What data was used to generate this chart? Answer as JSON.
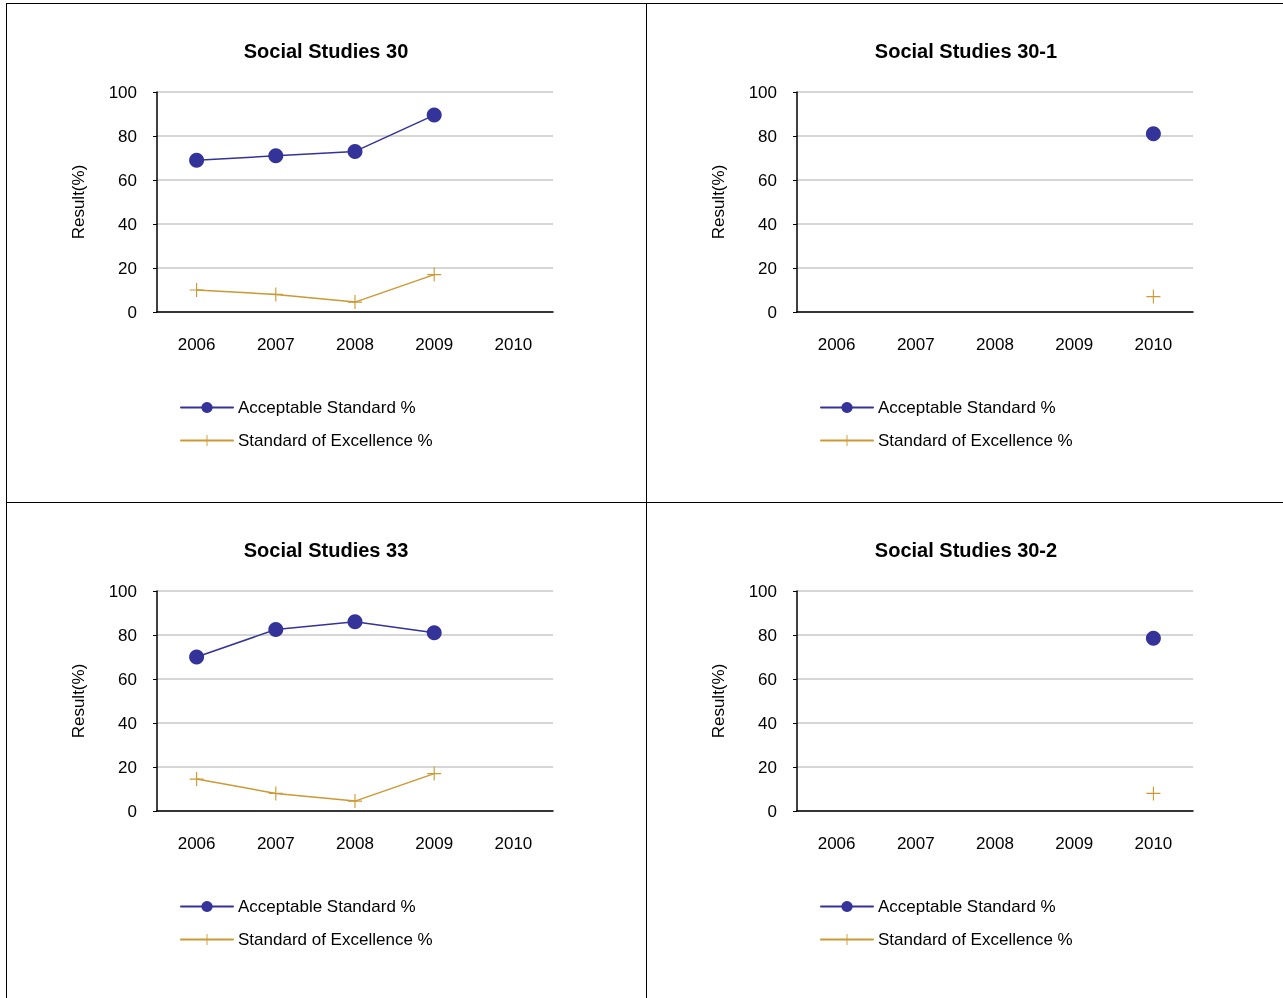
{
  "chart_data": [
    {
      "type": "line",
      "title": "Social Studies 30",
      "ylabel": "Result(%)",
      "categories": [
        "2006",
        "2007",
        "2008",
        "2009",
        "2010"
      ],
      "ylim": [
        0,
        100
      ],
      "yticks": [
        0,
        20,
        40,
        60,
        80,
        100
      ],
      "grid": "y",
      "legend": "bottom",
      "series": [
        {
          "name": "Acceptable Standard %",
          "color": "#333399",
          "marker": "circle",
          "values": [
            69,
            71,
            73,
            89.5,
            null
          ]
        },
        {
          "name": "Standard of Excellence %",
          "color": "#cc9933",
          "marker": "cross",
          "values": [
            10,
            8,
            4.5,
            17,
            null
          ]
        }
      ]
    },
    {
      "type": "line",
      "title": "Social Studies 30-1",
      "ylabel": "Result(%)",
      "categories": [
        "2006",
        "2007",
        "2008",
        "2009",
        "2010"
      ],
      "ylim": [
        0,
        100
      ],
      "yticks": [
        0,
        20,
        40,
        60,
        80,
        100
      ],
      "grid": "y",
      "legend": "bottom",
      "series": [
        {
          "name": "Acceptable Standard %",
          "color": "#333399",
          "marker": "circle",
          "values": [
            null,
            null,
            null,
            null,
            81
          ]
        },
        {
          "name": "Standard of Excellence %",
          "color": "#cc9933",
          "marker": "cross",
          "values": [
            null,
            null,
            null,
            null,
            7
          ]
        }
      ]
    },
    {
      "type": "line",
      "title": "Social Studies 33",
      "ylabel": "Result(%)",
      "categories": [
        "2006",
        "2007",
        "2008",
        "2009",
        "2010"
      ],
      "ylim": [
        0,
        100
      ],
      "yticks": [
        0,
        20,
        40,
        60,
        80,
        100
      ],
      "grid": "y",
      "legend": "bottom",
      "series": [
        {
          "name": "Acceptable Standard %",
          "color": "#333399",
          "marker": "circle",
          "values": [
            70,
            82.5,
            86,
            81,
            null
          ]
        },
        {
          "name": "Standard of Excellence %",
          "color": "#cc9933",
          "marker": "cross",
          "values": [
            14.5,
            8,
            4.5,
            17,
            null
          ]
        }
      ]
    },
    {
      "type": "line",
      "title": "Social Studies 30-2",
      "ylabel": "Result(%)",
      "categories": [
        "2006",
        "2007",
        "2008",
        "2009",
        "2010"
      ],
      "ylim": [
        0,
        100
      ],
      "yticks": [
        0,
        20,
        40,
        60,
        80,
        100
      ],
      "grid": "y",
      "legend": "bottom",
      "series": [
        {
          "name": "Acceptable Standard %",
          "color": "#333399",
          "marker": "circle",
          "values": [
            null,
            null,
            null,
            null,
            78.5
          ]
        },
        {
          "name": "Standard of Excellence %",
          "color": "#cc9933",
          "marker": "cross",
          "values": [
            null,
            null,
            null,
            null,
            8
          ]
        }
      ]
    }
  ]
}
